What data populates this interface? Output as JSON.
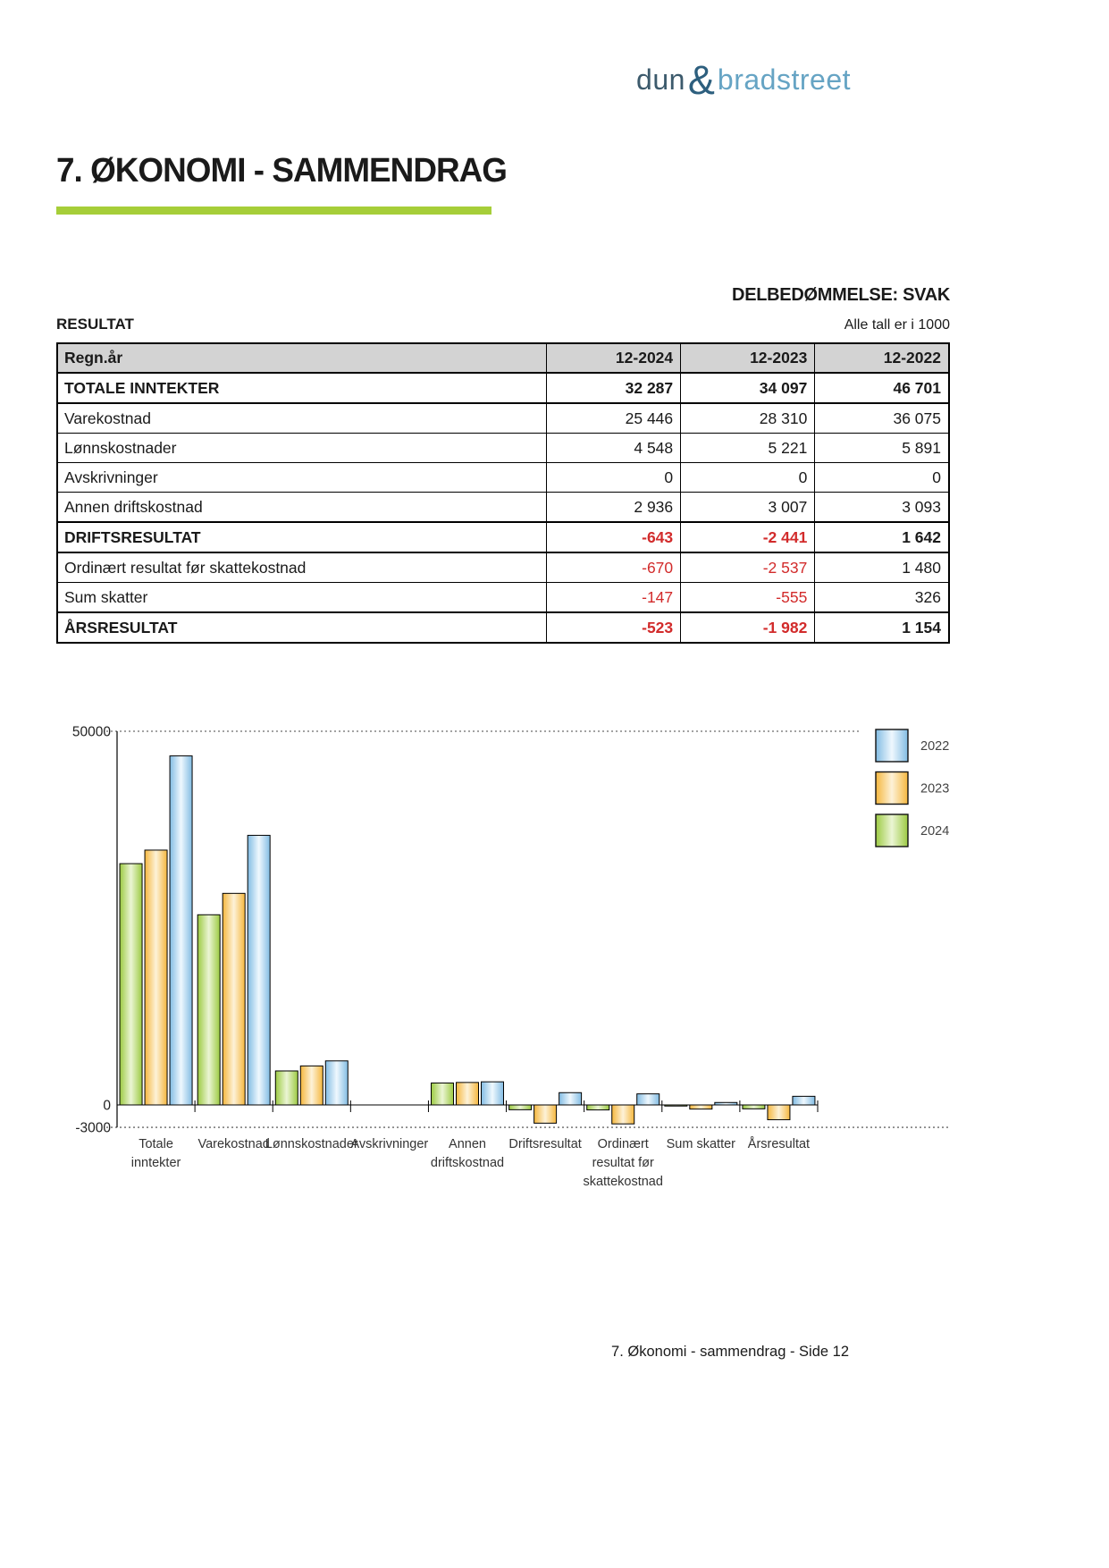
{
  "logo": {
    "prefix": "dun",
    "ampersand": "&",
    "suffix": "bradstreet"
  },
  "page_title": "7. ØKONOMI - SAMMENDRAG",
  "assessment": "DELBEDØMMELSE: SVAK",
  "section_label": "RESULTAT",
  "units_note": "Alle tall er i 1000",
  "table": {
    "columns": [
      "Regn.år",
      "12-2024",
      "12-2023",
      "12-2022"
    ],
    "rows": [
      {
        "label": "TOTALE INNTEKTER",
        "values": [
          "32 287",
          "34 097",
          "46 701"
        ],
        "bold": true
      },
      {
        "label": "Varekostnad",
        "values": [
          "25 446",
          "28 310",
          "36 075"
        ],
        "bold": false
      },
      {
        "label": "Lønnskostnader",
        "values": [
          "4 548",
          "5 221",
          "5 891"
        ],
        "bold": false
      },
      {
        "label": "Avskrivninger",
        "values": [
          "0",
          "0",
          "0"
        ],
        "bold": false
      },
      {
        "label": "Annen driftskostnad",
        "values": [
          "2 936",
          "3 007",
          "3 093"
        ],
        "bold": false
      },
      {
        "label": "DRIFTSRESULTAT",
        "values": [
          "-643",
          "-2 441",
          "1 642"
        ],
        "bold": true
      },
      {
        "label": "Ordinært resultat før skattekostnad",
        "values": [
          "-670",
          "-2 537",
          "1 480"
        ],
        "bold": false
      },
      {
        "label": "Sum skatter",
        "values": [
          "-147",
          "-555",
          "326"
        ],
        "bold": false
      },
      {
        "label": "ÅRSRESULTAT",
        "values": [
          "-523",
          "-1 982",
          "1 154"
        ],
        "bold": true
      }
    ]
  },
  "chart_data": {
    "type": "bar",
    "categories": [
      "Totale inntekter",
      "Varekostnad",
      "Lønnskostnader",
      "Avskrivninger",
      "Annen driftskostnad",
      "Driftsresultat",
      "Ordinært resultat før skattekostnad",
      "Sum skatter",
      "Årsresultat"
    ],
    "category_label_lines": [
      [
        "Totale",
        "inntekter"
      ],
      [
        "Varekostnad"
      ],
      [
        "Lønnskostnader"
      ],
      [
        "Avskrivninger"
      ],
      [
        "Annen",
        "driftskostnad"
      ],
      [
        "Driftsresultat"
      ],
      [
        "Ordinært",
        "resultat før",
        "skattekostnad"
      ],
      [
        "Sum skatter"
      ],
      [
        "Årsresultat"
      ]
    ],
    "series": [
      {
        "name": "2022",
        "edge_color": "#82BCE3",
        "center_color": "#EFF8FE",
        "values": [
          46701,
          36075,
          5891,
          0,
          3093,
          1642,
          1480,
          326,
          1154
        ]
      },
      {
        "name": "2023",
        "edge_color": "#F5B73E",
        "center_color": "#FDF2D8",
        "values": [
          34097,
          28310,
          5221,
          0,
          3007,
          -2441,
          -2537,
          -555,
          -1982
        ]
      },
      {
        "name": "2024",
        "edge_color": "#9CCA42",
        "center_color": "#EBF5D4",
        "values": [
          32287,
          25446,
          4548,
          0,
          2936,
          -643,
          -670,
          -147,
          -523
        ]
      }
    ],
    "bar_order": [
      "2024",
      "2023",
      "2022"
    ],
    "ylim": [
      -3000,
      50000
    ],
    "yticks": [
      {
        "value": 50000,
        "label": "50000"
      },
      {
        "value": 0,
        "label": "0"
      },
      {
        "value": -3000,
        "label": "-3000"
      }
    ],
    "grid": "dotted lines at 50000 and -3000, solid zero axis",
    "legend_position": "right"
  },
  "footer": "7. Økonomi - sammendrag - Side 12",
  "colors": {
    "accent_green": "#A6CE39",
    "negative_red": "#D22B2B",
    "table_header_bg": "#D3D3D3",
    "logo_dark": "#3C5A6C",
    "logo_amp": "#2D5F7E",
    "logo_light": "#66A4C4"
  }
}
